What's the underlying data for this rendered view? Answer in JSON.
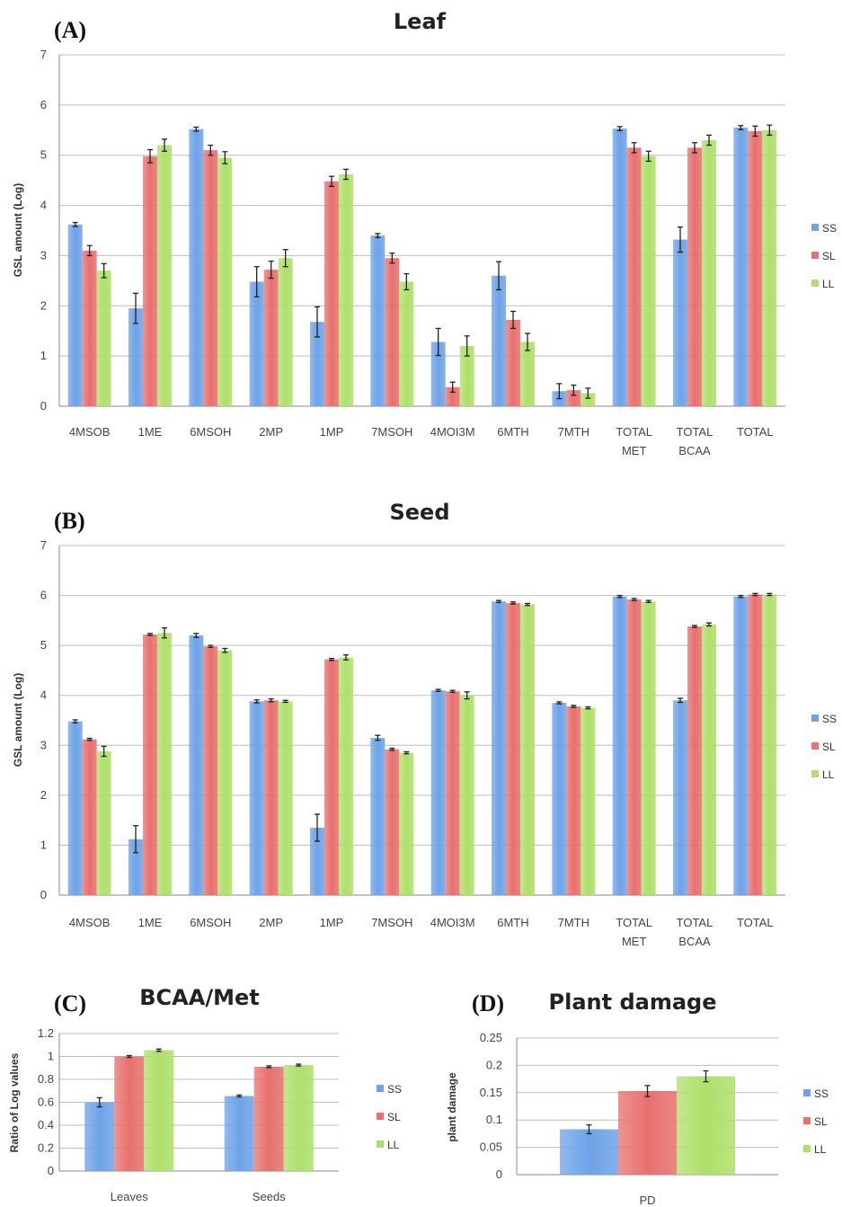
{
  "colors": {
    "SS": "#6ea3e8",
    "SL": "#e8706e",
    "LL": "#aee06a"
  },
  "chart_data": [
    {
      "panel": "(A)",
      "type": "bar",
      "title": "Leaf",
      "ylabel": "GSL amount (Log)",
      "xlabel": "",
      "ylim": [
        0,
        7
      ],
      "yticks": [
        "0",
        "1",
        "2",
        "3",
        "4",
        "5",
        "6",
        "7"
      ],
      "grid": true,
      "legend": "right",
      "categories": [
        "4MSOB",
        "1ME",
        "6MSOH",
        "2MP",
        "1MP",
        "7MSOH",
        "4MOI3M",
        "6MTH",
        "7MTH",
        "TOTAL MET",
        "TOTAL BCAA",
        "TOTAL"
      ],
      "category_lines": [
        [
          "4MSOB"
        ],
        [
          "1ME"
        ],
        [
          "6MSOH"
        ],
        [
          "2MP"
        ],
        [
          "1MP"
        ],
        [
          "7MSOH"
        ],
        [
          "4MOI3M"
        ],
        [
          "6MTH"
        ],
        [
          "7MTH"
        ],
        [
          "TOTAL",
          "MET"
        ],
        [
          "TOTAL",
          "BCAA"
        ],
        [
          "TOTAL"
        ]
      ],
      "series": [
        {
          "name": "SS",
          "values": [
            3.62,
            1.95,
            5.52,
            2.48,
            1.68,
            3.4,
            1.28,
            2.6,
            0.3,
            5.53,
            3.32,
            5.55
          ],
          "errors": [
            0.04,
            0.3,
            0.04,
            0.3,
            0.3,
            0.04,
            0.27,
            0.28,
            0.15,
            0.04,
            0.25,
            0.04
          ]
        },
        {
          "name": "SL",
          "values": [
            3.1,
            4.98,
            5.1,
            2.72,
            4.48,
            2.95,
            0.38,
            1.72,
            0.32,
            5.15,
            5.15,
            5.48
          ],
          "errors": [
            0.1,
            0.13,
            0.1,
            0.17,
            0.1,
            0.1,
            0.1,
            0.17,
            0.1,
            0.1,
            0.1,
            0.1
          ]
        },
        {
          "name": "LL",
          "values": [
            2.7,
            5.2,
            4.95,
            2.95,
            4.62,
            2.48,
            1.2,
            1.28,
            0.26,
            4.98,
            5.3,
            5.5
          ],
          "errors": [
            0.14,
            0.12,
            0.12,
            0.17,
            0.1,
            0.16,
            0.2,
            0.17,
            0.1,
            0.1,
            0.1,
            0.1
          ]
        }
      ]
    },
    {
      "panel": "(B)",
      "type": "bar",
      "title": "Seed",
      "ylabel": "GSL amount (Log)",
      "xlabel": "",
      "ylim": [
        0,
        7
      ],
      "yticks": [
        "0",
        "1",
        "2",
        "3",
        "4",
        "5",
        "6",
        "7"
      ],
      "grid": true,
      "legend": "right",
      "categories": [
        "4MSOB",
        "1ME",
        "6MSOH",
        "2MP",
        "1MP",
        "7MSOH",
        "4MOI3M",
        "6MTH",
        "7MTH",
        "TOTAL MET",
        "TOTAL BCAA",
        "TOTAL"
      ],
      "category_lines": [
        [
          "4MSOB"
        ],
        [
          "1ME"
        ],
        [
          "6MSOH"
        ],
        [
          "2MP"
        ],
        [
          "1MP"
        ],
        [
          "7MSOH"
        ],
        [
          "4MOI3M"
        ],
        [
          "6MTH"
        ],
        [
          "7MTH"
        ],
        [
          "TOTAL",
          "MET"
        ],
        [
          "TOTAL",
          "BCAA"
        ],
        [
          "TOTAL"
        ]
      ],
      "series": [
        {
          "name": "SS",
          "values": [
            3.48,
            1.12,
            5.2,
            3.88,
            1.35,
            3.15,
            4.1,
            5.88,
            3.85,
            5.98,
            3.9,
            5.98
          ],
          "errors": [
            0.03,
            0.27,
            0.04,
            0.03,
            0.27,
            0.05,
            0.02,
            0.02,
            0.02,
            0.02,
            0.04,
            0.02
          ]
        },
        {
          "name": "SL",
          "values": [
            3.12,
            5.22,
            4.98,
            3.9,
            4.72,
            2.92,
            4.08,
            5.85,
            3.78,
            5.92,
            5.38,
            6.02
          ],
          "errors": [
            0.02,
            0.02,
            0.02,
            0.03,
            0.02,
            0.02,
            0.02,
            0.02,
            0.02,
            0.02,
            0.02,
            0.02
          ]
        },
        {
          "name": "LL",
          "values": [
            2.88,
            5.25,
            4.9,
            3.88,
            4.76,
            2.85,
            4.0,
            5.82,
            3.75,
            5.88,
            5.42,
            6.02
          ],
          "errors": [
            0.1,
            0.1,
            0.04,
            0.02,
            0.05,
            0.02,
            0.07,
            0.02,
            0.02,
            0.02,
            0.03,
            0.02
          ]
        }
      ]
    },
    {
      "panel": "(C)",
      "type": "bar",
      "title": "BCAA/Met",
      "ylabel": "Ratio of Log values",
      "xlabel": "",
      "ylim": [
        0,
        1.2
      ],
      "yticks": [
        "0",
        "0.2",
        "0.4",
        "0.6",
        "0.8",
        "1",
        "1.2"
      ],
      "grid": true,
      "legend": "right",
      "categories": [
        "Leaves",
        "Seeds"
      ],
      "category_lines": [
        [
          "Leaves"
        ],
        [
          "Seeds"
        ]
      ],
      "series": [
        {
          "name": "SS",
          "values": [
            0.6,
            0.655
          ],
          "errors": [
            0.04,
            0.008
          ]
        },
        {
          "name": "SL",
          "values": [
            1.0,
            0.91
          ],
          "errors": [
            0.008,
            0.008
          ]
        },
        {
          "name": "LL",
          "values": [
            1.055,
            0.925
          ],
          "errors": [
            0.01,
            0.008
          ]
        }
      ]
    },
    {
      "panel": "(D)",
      "type": "bar",
      "title": "Plant damage",
      "ylabel": "plant damage",
      "xlabel": "",
      "ylim": [
        0,
        0.25
      ],
      "yticks": [
        "0",
        "0.05",
        "0.1",
        "0.15",
        "0.2",
        "0.25"
      ],
      "grid": true,
      "legend": "right",
      "categories": [
        "PD"
      ],
      "category_lines": [
        [
          "PD"
        ]
      ],
      "series": [
        {
          "name": "SS",
          "values": [
            0.083
          ],
          "errors": [
            0.008
          ]
        },
        {
          "name": "SL",
          "values": [
            0.153
          ],
          "errors": [
            0.01
          ]
        },
        {
          "name": "LL",
          "values": [
            0.18
          ],
          "errors": [
            0.01
          ]
        }
      ]
    }
  ]
}
